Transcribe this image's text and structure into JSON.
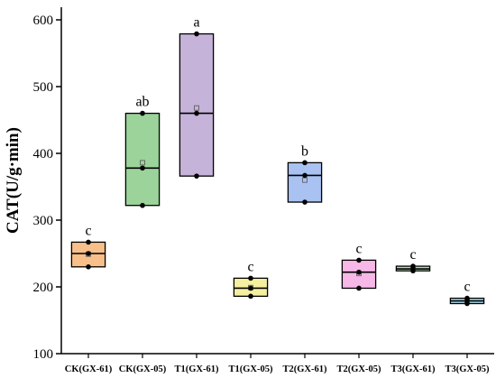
{
  "chart_data": {
    "type": "box",
    "ylabel": "CAT(U/g·min)",
    "ylim": [
      100,
      650
    ],
    "yticks": [
      100,
      200,
      300,
      400,
      500,
      600
    ],
    "categories": [
      "CK(GX-61)",
      "CK(GX-05)",
      "T1(GX-61)",
      "T1(GX-05)",
      "T2(GX-61)",
      "T2(GX-05)",
      "T3(GX-61)",
      "T3(GX-05)"
    ],
    "boxes": [
      {
        "category": "CK(GX-61)",
        "q1": 230,
        "median": 250,
        "q3": 267,
        "mean": 249,
        "points": [
          230,
          250,
          267
        ],
        "color": "#f7c08a",
        "letter": "c"
      },
      {
        "category": "CK(GX-05)",
        "q1": 322,
        "median": 378,
        "q3": 460,
        "mean": 386,
        "points": [
          322,
          378,
          460
        ],
        "color": "#9bd39a",
        "letter": "ab"
      },
      {
        "category": "T1(GX-61)",
        "q1": 366,
        "median": 460,
        "q3": 579,
        "mean": 468,
        "points": [
          366,
          460,
          579
        ],
        "color": "#c6b3d9",
        "letter": "a"
      },
      {
        "category": "T1(GX-05)",
        "q1": 186,
        "median": 198,
        "q3": 213,
        "mean": 199,
        "points": [
          186,
          198,
          213
        ],
        "color": "#f5f0a0",
        "letter": "c"
      },
      {
        "category": "T2(GX-61)",
        "q1": 327,
        "median": 367,
        "q3": 386,
        "mean": 360,
        "points": [
          327,
          367,
          386
        ],
        "color": "#a9c2f2",
        "letter": "b"
      },
      {
        "category": "T2(GX-05)",
        "q1": 198,
        "median": 222,
        "q3": 240,
        "mean": 220,
        "points": [
          198,
          222,
          240
        ],
        "color": "#f7b8e8",
        "letter": "c"
      },
      {
        "category": "T3(GX-61)",
        "q1": 224,
        "median": 227,
        "q3": 231,
        "mean": 227,
        "points": [
          224,
          227,
          231
        ],
        "color": "#b9d9b8",
        "letter": "c"
      },
      {
        "category": "T3(GX-05)",
        "q1": 175,
        "median": 179,
        "q3": 183,
        "mean": 179,
        "points": [
          175,
          179,
          183
        ],
        "color": "#a9dff0",
        "letter": "c"
      }
    ]
  }
}
